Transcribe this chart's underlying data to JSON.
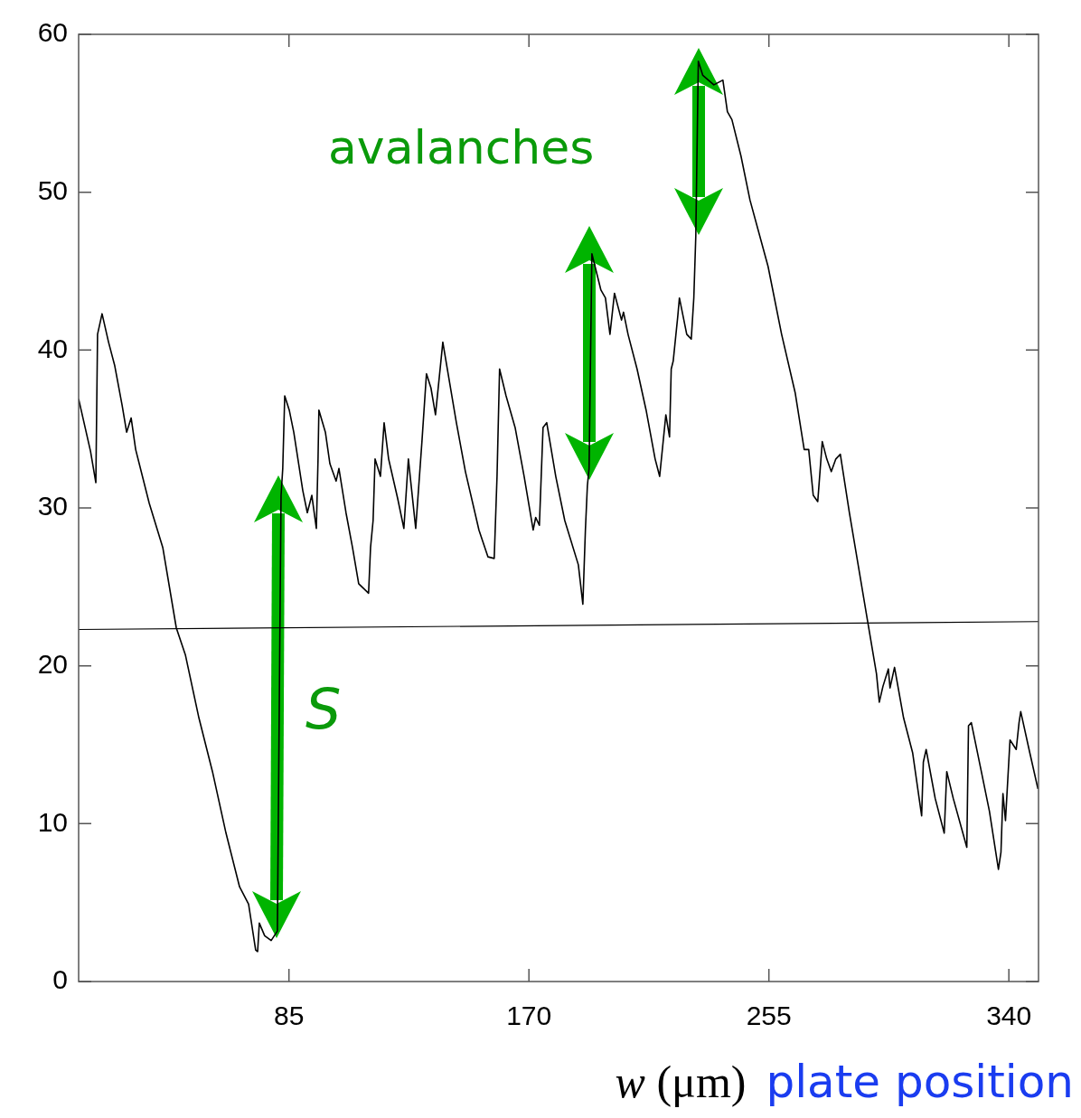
{
  "chart_data": {
    "type": "line",
    "xlabel": "w (μm)",
    "xlim": [
      10.5,
      350.5
    ],
    "xticks": [
      85,
      170,
      255,
      340
    ],
    "ylim": [
      0,
      60
    ],
    "yticks": [
      0,
      10,
      20,
      30,
      40,
      50,
      60
    ],
    "marker": "none",
    "line_style": "solid",
    "legend": false,
    "annotations": [
      "avalanches",
      "S",
      "plate position"
    ],
    "series": [
      {
        "type": "line",
        "color": "#000000",
        "x": [
          10.5,
          14.7,
          16.6,
          17.2,
          18.8,
          21.1,
          23.3,
          25.9,
          27.5,
          29.1,
          30.7,
          35.5,
          40.3,
          45.1,
          48.3,
          53.1,
          57.9,
          62.7,
          67.5,
          70.7,
          73.2,
          73.9,
          74.5,
          76.4,
          78.7,
          80.9,
          82.2,
          82.8,
          83.5,
          85.1,
          86.7,
          89.9,
          91.5,
          93.1,
          94.7,
          95.3,
          95.6,
          97.9,
          99.5,
          101.7,
          102.7,
          105.2,
          107.5,
          109.7,
          113.2,
          113.9,
          114.8,
          115.5,
          117.4,
          118.7,
          120.3,
          123.5,
          125.7,
          127.3,
          128.3,
          129.9,
          132.1,
          133.7,
          135.3,
          136.9,
          139.5,
          141.1,
          144.3,
          147.5,
          152.3,
          155.5,
          157.7,
          158.7,
          159.6,
          161.9,
          165.1,
          168.3,
          171.5,
          172.4,
          173.7,
          175.0,
          176.3,
          179.5,
          182.7,
          187.5,
          189.1,
          190.0,
          190.7,
          191.3,
          192.3,
          195.5,
          197.1,
          198.7,
          200.3,
          202.8,
          203.5,
          205.1,
          208.3,
          211.5,
          214.7,
          216.3,
          218.5,
          219.8,
          220.4,
          221.1,
          222.7,
          223.3,
          225.9,
          227.5,
          228.4,
          229.1,
          230.0,
          231.6,
          235.5,
          238.7,
          240.3,
          241.9,
          245.1,
          248.3,
          254.7,
          259.5,
          264.3,
          267.5,
          269.1,
          270.7,
          272.3,
          273.9,
          275.5,
          277.1,
          278.7,
          280.3,
          283.5,
          286.7,
          289.9,
          293.1,
          294.1,
          295.4,
          297.3,
          297.9,
          299.5,
          302.7,
          305.9,
          309.1,
          309.7,
          310.7,
          313.9,
          317.1,
          318.0,
          320.3,
          325.1,
          325.7,
          326.7,
          329.9,
          333.1,
          336.3,
          337.2,
          337.9,
          338.8,
          340.4,
          342.6,
          343.6,
          344.2,
          347.4,
          350.3
        ],
        "values": [
          36.9,
          33.6,
          31.6,
          41.0,
          42.3,
          40.5,
          39.0,
          36.5,
          34.8,
          35.7,
          33.7,
          30.3,
          27.5,
          22.4,
          20.7,
          16.7,
          13.3,
          9.4,
          6.0,
          4.9,
          2.0,
          1.9,
          3.7,
          2.9,
          2.6,
          3.2,
          30.8,
          32.5,
          37.1,
          36.2,
          34.8,
          31.1,
          29.7,
          30.8,
          28.7,
          33.1,
          36.2,
          34.8,
          32.8,
          31.7,
          32.5,
          29.7,
          27.5,
          25.2,
          24.6,
          27.5,
          29.2,
          33.1,
          32.0,
          35.4,
          33.1,
          30.6,
          28.7,
          33.1,
          31.4,
          28.7,
          34.2,
          38.5,
          37.6,
          35.9,
          40.5,
          38.8,
          35.4,
          32.3,
          28.6,
          26.9,
          26.8,
          32.0,
          38.8,
          37.1,
          35.1,
          32.0,
          28.6,
          29.4,
          28.9,
          35.1,
          35.4,
          32.0,
          29.2,
          26.4,
          23.9,
          28.6,
          31.4,
          32.5,
          46.1,
          43.8,
          43.3,
          41.0,
          43.6,
          41.9,
          42.4,
          41.0,
          38.8,
          36.2,
          33.1,
          32.0,
          35.9,
          34.5,
          38.8,
          39.3,
          42.1,
          43.3,
          41.0,
          40.7,
          43.3,
          47.2,
          58.3,
          57.4,
          56.8,
          57.1,
          55.1,
          54.6,
          52.3,
          49.5,
          45.3,
          41.0,
          37.3,
          33.7,
          33.7,
          30.8,
          30.4,
          34.2,
          33.1,
          32.3,
          33.1,
          33.4,
          29.7,
          26.3,
          22.9,
          19.5,
          17.7,
          18.7,
          19.8,
          18.6,
          19.9,
          16.7,
          14.5,
          10.5,
          13.9,
          14.7,
          11.6,
          9.4,
          13.3,
          11.6,
          8.5,
          16.2,
          16.4,
          13.6,
          10.8,
          7.1,
          8.2,
          11.9,
          10.2,
          15.3,
          14.7,
          16.4,
          17.1,
          14.5,
          12.2
        ]
      },
      {
        "type": "line",
        "color": "#000000",
        "x": [
          10.5,
          350.5
        ],
        "values": [
          22.3,
          22.8
        ]
      }
    ]
  }
}
